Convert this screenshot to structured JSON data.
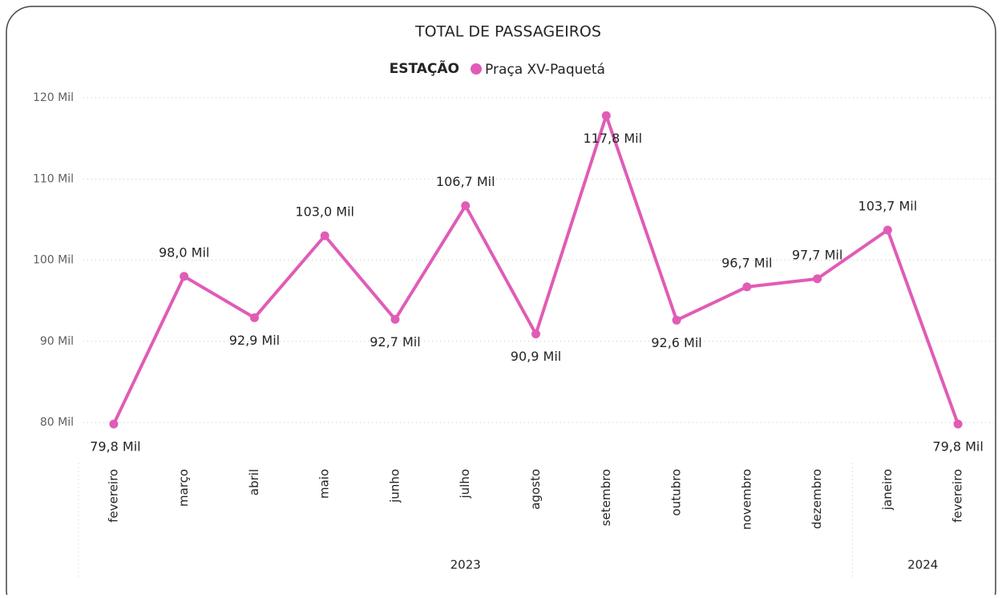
{
  "chart_data": {
    "type": "line",
    "title": "TOTAL DE PASSAGEIROS",
    "legend_title": "ESTAÇÃO",
    "category_groups": [
      {
        "label": "2023",
        "categories": [
          "fevereiro",
          "março",
          "abril",
          "maio",
          "junho",
          "julho",
          "agosto",
          "setembro",
          "outubro",
          "novembro",
          "dezembro"
        ]
      },
      {
        "label": "2024",
        "categories": [
          "janeiro",
          "fevereiro"
        ]
      }
    ],
    "series": [
      {
        "name": "Praça XV-Paquetá",
        "color": "#e05cb6",
        "values": [
          79.8,
          98.0,
          92.9,
          103.0,
          92.7,
          106.7,
          90.9,
          117.8,
          92.6,
          96.7,
          97.7,
          103.7,
          79.8
        ],
        "value_labels": [
          "79,8 Mil",
          "98,0 Mil",
          "92,9 Mil",
          "103,0 Mil",
          "92,7 Mil",
          "106,7 Mil",
          "90,9 Mil",
          "117,8 Mil",
          "92,6 Mil",
          "96,7 Mil",
          "97,7 Mil",
          "103,7 Mil",
          "79,8 Mil"
        ]
      }
    ],
    "ylim": [
      80,
      120
    ],
    "yticks": [
      {
        "value": 80,
        "label": "80 Mil"
      },
      {
        "value": 90,
        "label": "90 Mil"
      },
      {
        "value": 100,
        "label": "100 Mil"
      },
      {
        "value": 110,
        "label": "110 Mil"
      },
      {
        "value": 120,
        "label": "120 Mil"
      }
    ],
    "grid": true
  }
}
